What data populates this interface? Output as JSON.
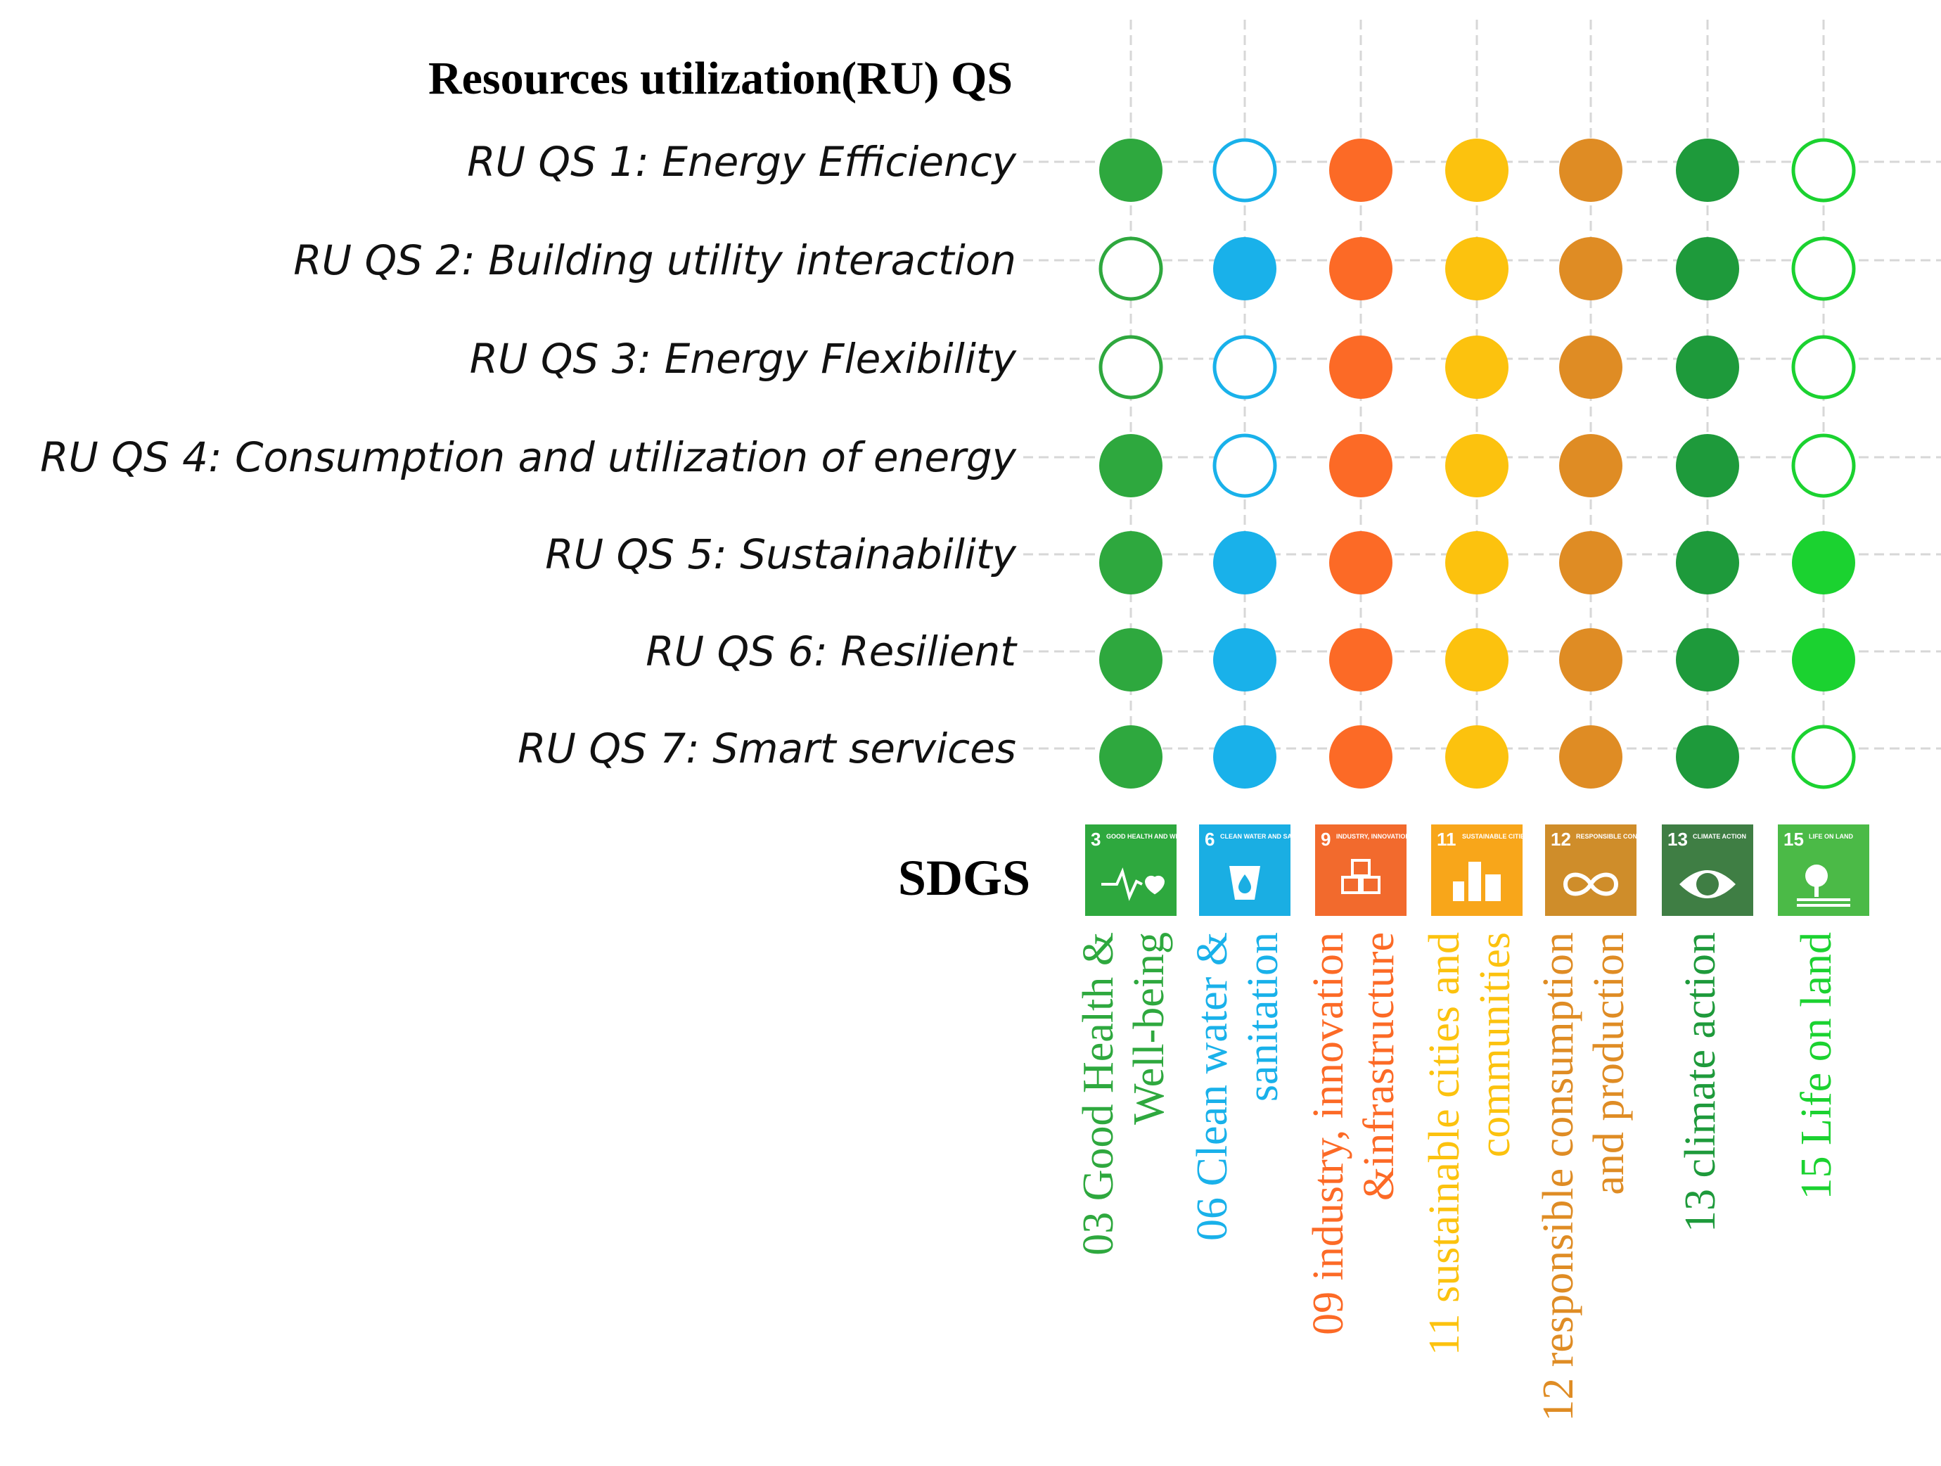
{
  "title": "Resources utilization(RU) QS",
  "sdgs_label": "SDGS",
  "rows": [
    "RU QS 1: Energy Efficiency",
    "RU QS 2: Building utility interaction",
    "RU QS 3: Energy Flexibility",
    "RU QS 4: Consumption and utilization of energy",
    "RU QS 5: Sustainability",
    "RU QS 6: Resilient",
    "RU QS 7: Smart services"
  ],
  "columns": [
    {
      "num": "3",
      "tile_text": "GOOD HEALTH AND WELL-BEING",
      "icon": "heartbeat-icon",
      "color": "#2ea83e",
      "tile_color": "#2ea83e",
      "label_lines": [
        "03 Good Health &",
        "Well-being"
      ]
    },
    {
      "num": "6",
      "tile_text": "CLEAN WATER AND SANITATION",
      "icon": "water-drop-icon",
      "color": "#19b1ea",
      "tile_color": "#1aaee3",
      "label_lines": [
        "06 Clean water &",
        "sanitation"
      ]
    },
    {
      "num": "9",
      "tile_text": "INDUSTRY, INNOVATION AND INFRASTRUCTURE",
      "icon": "cubes-icon",
      "color": "#fc6a26",
      "tile_color": "#f26a2d",
      "label_lines": [
        "09 industry, innovation",
        "&infrastructure"
      ]
    },
    {
      "num": "11",
      "tile_text": "SUSTAINABLE CITIES AND COMMUNITIES",
      "icon": "city-icon",
      "color": "#fcc20e",
      "tile_color": "#f8a61a",
      "label_lines": [
        "11 sustainable cities and",
        "communities"
      ]
    },
    {
      "num": "12",
      "tile_text": "RESPONSIBLE CONSUMPTION AND PRODUCTION",
      "icon": "infinity-icon",
      "color": "#df8c24",
      "tile_color": "#cf8d2a",
      "label_lines": [
        "12 responsible consumption",
        "and production"
      ]
    },
    {
      "num": "13",
      "tile_text": "CLIMATE ACTION",
      "icon": "eye-globe-icon",
      "color": "#1e9a3b",
      "tile_color": "#3f7e44",
      "label_lines": [
        "13 climate action"
      ]
    },
    {
      "num": "15",
      "tile_text": "LIFE ON LAND",
      "icon": "tree-icon",
      "color": "#1bd230",
      "tile_color": "#4bba47",
      "label_lines": [
        "15 Life on land"
      ]
    }
  ],
  "matrix": [
    [
      1,
      0,
      1,
      1,
      1,
      1,
      0
    ],
    [
      0,
      1,
      1,
      1,
      1,
      1,
      0
    ],
    [
      0,
      0,
      1,
      1,
      1,
      1,
      0
    ],
    [
      1,
      0,
      1,
      1,
      1,
      1,
      0
    ],
    [
      1,
      1,
      1,
      1,
      1,
      1,
      1
    ],
    [
      1,
      1,
      1,
      1,
      1,
      1,
      1
    ],
    [
      1,
      1,
      1,
      1,
      1,
      1,
      0
    ]
  ]
}
